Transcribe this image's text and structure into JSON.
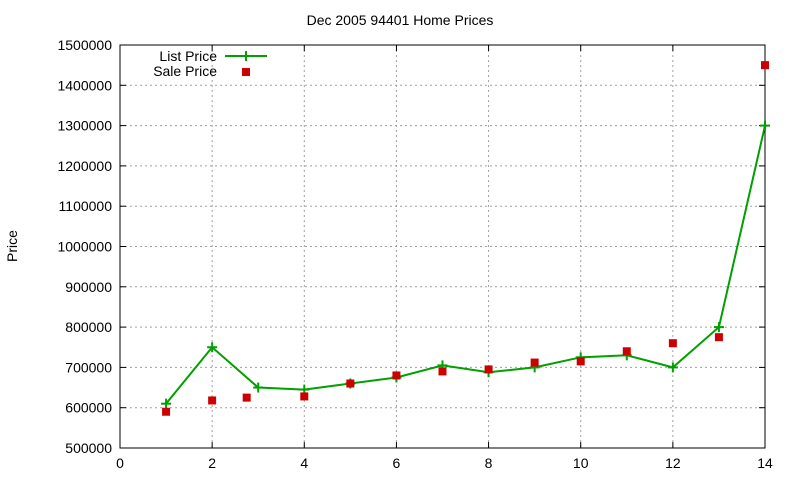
{
  "chart_data": {
    "type": "line",
    "title": "Dec 2005 94401 Home Prices",
    "ylabel": "Price",
    "xlabel": "",
    "xlim": [
      0,
      14
    ],
    "ylim": [
      500000,
      1500000
    ],
    "x_ticks": [
      "0",
      "2",
      "4",
      "6",
      "8",
      "10",
      "12",
      "14"
    ],
    "y_ticks": [
      "500000",
      "600000",
      "700000",
      "800000",
      "900000",
      "1000000",
      "1100000",
      "1200000",
      "1300000",
      "1400000",
      "1500000"
    ],
    "grid": true,
    "legend_position": "top-left",
    "series": [
      {
        "name": "List Price",
        "style": "line+cross",
        "color": "#00a000",
        "x": [
          1,
          2,
          3,
          4,
          5,
          6,
          7,
          8,
          9,
          10,
          11,
          12,
          13,
          14
        ],
        "y": [
          610000,
          750000,
          650000,
          645000,
          660000,
          675000,
          705000,
          688000,
          700000,
          725000,
          730000,
          700000,
          800000,
          1300000
        ]
      },
      {
        "name": "Sale Price",
        "style": "points-square",
        "color": "#cc0000",
        "x": [
          1,
          2,
          2.75,
          4,
          5,
          6,
          7,
          8,
          9,
          10,
          11,
          12,
          13,
          14
        ],
        "y": [
          590000,
          618000,
          625000,
          628000,
          660000,
          680000,
          690000,
          695000,
          712000,
          715000,
          740000,
          760000,
          775000,
          1450000
        ]
      }
    ]
  }
}
